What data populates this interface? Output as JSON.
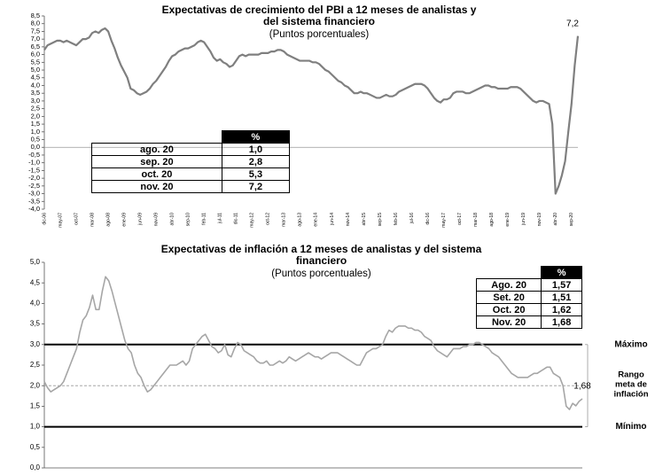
{
  "chart_data": [
    {
      "type": "line",
      "title": "Expectativas de crecimiento del PBI a 12 meses de analistas y del sistema financiero",
      "subtitle": "(Puntos porcentuales)",
      "color": "#7f7f7f",
      "zero_line": true,
      "categories": [
        "dic-06",
        null,
        null,
        null,
        null,
        "may-07",
        null,
        null,
        null,
        null,
        "oct-07",
        null,
        null,
        null,
        null,
        "mar-08",
        null,
        null,
        null,
        null,
        "ago-08",
        null,
        null,
        null,
        null,
        "ene-09",
        null,
        null,
        null,
        null,
        "jun-09",
        null,
        null,
        null,
        null,
        "nov-09",
        null,
        null,
        null,
        null,
        "abr-10",
        null,
        null,
        null,
        null,
        "sep-10",
        null,
        null,
        null,
        null,
        "feb-11",
        null,
        null,
        null,
        null,
        "jul-11",
        null,
        null,
        null,
        null,
        "dic-11",
        null,
        null,
        null,
        null,
        "may-12",
        null,
        null,
        null,
        null,
        "oct-12",
        null,
        null,
        null,
        null,
        "mar-13",
        null,
        null,
        null,
        null,
        "ago-13",
        null,
        null,
        null,
        null,
        "ene-14",
        null,
        null,
        null,
        null,
        "jun-14",
        null,
        null,
        null,
        null,
        "nov-14",
        null,
        null,
        null,
        null,
        "abr-15",
        null,
        null,
        null,
        null,
        "sep-15",
        null,
        null,
        null,
        null,
        "feb-16",
        null,
        null,
        null,
        null,
        "jul-16",
        null,
        null,
        null,
        null,
        "dic-16",
        null,
        null,
        null,
        null,
        "may-17",
        null,
        null,
        null,
        null,
        "oct-17",
        null,
        null,
        null,
        null,
        "mar-18",
        null,
        null,
        null,
        null,
        "ago-18",
        null,
        null,
        null,
        null,
        "ene-19",
        null,
        null,
        null,
        null,
        "jun-19",
        null,
        null,
        null,
        null,
        "nov-19",
        null,
        null,
        null,
        null,
        "abr-20",
        null,
        null,
        null,
        null,
        "sep-20",
        null,
        null
      ],
      "values": [
        6.3,
        6.6,
        6.7,
        6.8,
        6.9,
        6.9,
        6.8,
        6.9,
        6.8,
        6.7,
        6.6,
        6.8,
        7.0,
        7.0,
        7.1,
        7.4,
        7.5,
        7.4,
        7.6,
        7.7,
        7.5,
        6.9,
        6.4,
        5.8,
        5.3,
        4.9,
        4.5,
        3.8,
        3.7,
        3.5,
        3.4,
        3.5,
        3.6,
        3.8,
        4.1,
        4.3,
        4.6,
        4.9,
        5.2,
        5.6,
        5.9,
        6.0,
        6.2,
        6.3,
        6.4,
        6.4,
        6.5,
        6.6,
        6.8,
        6.9,
        6.8,
        6.5,
        6.2,
        5.8,
        5.6,
        5.7,
        5.5,
        5.4,
        5.2,
        5.3,
        5.6,
        5.9,
        6.0,
        5.9,
        6.0,
        6.0,
        6.0,
        6.0,
        6.1,
        6.1,
        6.1,
        6.2,
        6.2,
        6.3,
        6.3,
        6.2,
        6.0,
        5.9,
        5.8,
        5.7,
        5.6,
        5.6,
        5.6,
        5.6,
        5.5,
        5.5,
        5.4,
        5.2,
        5.0,
        4.9,
        4.7,
        4.5,
        4.3,
        4.2,
        4.0,
        3.9,
        3.7,
        3.5,
        3.5,
        3.6,
        3.5,
        3.5,
        3.4,
        3.3,
        3.2,
        3.2,
        3.3,
        3.4,
        3.3,
        3.3,
        3.4,
        3.6,
        3.7,
        3.8,
        3.9,
        4.0,
        4.1,
        4.1,
        4.1,
        4.0,
        3.8,
        3.5,
        3.2,
        3.0,
        2.9,
        3.1,
        3.1,
        3.2,
        3.5,
        3.6,
        3.6,
        3.6,
        3.5,
        3.5,
        3.6,
        3.7,
        3.8,
        3.9,
        4.0,
        4.0,
        3.9,
        3.9,
        3.8,
        3.8,
        3.8,
        3.8,
        3.9,
        3.9,
        3.9,
        3.8,
        3.6,
        3.4,
        3.2,
        3.0,
        2.9,
        3.0,
        3.0,
        2.9,
        2.8,
        1.5,
        -3.0,
        -2.5,
        -1.8,
        -0.9,
        1.0,
        2.8,
        5.3,
        7.2
      ],
      "end_label": "7,2",
      "ylim": [
        -4,
        8.5
      ],
      "yticks": [
        {
          "value": -4,
          "label": "-4,0"
        },
        {
          "value": -3.5,
          "label": "-3,5"
        },
        {
          "value": -3,
          "label": "-3,0"
        },
        {
          "value": -2.5,
          "label": "-2,5"
        },
        {
          "value": -2,
          "label": "-2,0"
        },
        {
          "value": -1.5,
          "label": "-1,5"
        },
        {
          "value": -1,
          "label": "-1,0"
        },
        {
          "value": -0.5,
          "label": "-0,5"
        },
        {
          "value": 0,
          "label": "0,0"
        },
        {
          "value": 0.5,
          "label": "0,5"
        },
        {
          "value": 1,
          "label": "1,0"
        },
        {
          "value": 1.5,
          "label": "1,5"
        },
        {
          "value": 2,
          "label": "2,0"
        },
        {
          "value": 2.5,
          "label": "2,5"
        },
        {
          "value": 3,
          "label": "3,0"
        },
        {
          "value": 3.5,
          "label": "3,5"
        },
        {
          "value": 4,
          "label": "4,0"
        },
        {
          "value": 4.5,
          "label": "4,5"
        },
        {
          "value": 5,
          "label": "5,0"
        },
        {
          "value": 5.5,
          "label": "5,5"
        },
        {
          "value": 6,
          "label": "6,0"
        },
        {
          "value": 6.5,
          "label": "6,5"
        },
        {
          "value": 7,
          "label": "7,0"
        },
        {
          "value": 7.5,
          "label": "7,5"
        },
        {
          "value": 8,
          "label": "8,0"
        },
        {
          "value": 8.5,
          "label": "8,5"
        }
      ],
      "table": {
        "header": "%",
        "rows": [
          [
            "ago. 20",
            "1,0"
          ],
          [
            "sep. 20",
            "2,8"
          ],
          [
            "oct. 20",
            "5,3"
          ],
          [
            "nov. 20",
            "7,2"
          ]
        ]
      }
    },
    {
      "type": "line",
      "title": "Expectativas de inflación a 12 meses de analistas y del sistema financiero",
      "subtitle": "(Puntos porcentuales)",
      "color": "#a6a6a6",
      "values": [
        2.1,
        1.95,
        1.85,
        1.9,
        1.95,
        2.0,
        2.1,
        2.3,
        2.5,
        2.7,
        2.9,
        3.3,
        3.6,
        3.7,
        3.9,
        4.2,
        3.85,
        3.85,
        4.3,
        4.65,
        4.55,
        4.3,
        4.0,
        3.7,
        3.4,
        3.1,
        2.9,
        2.8,
        2.5,
        2.3,
        2.2,
        2.0,
        1.85,
        1.9,
        2.0,
        2.1,
        2.2,
        2.3,
        2.4,
        2.5,
        2.5,
        2.5,
        2.55,
        2.6,
        2.5,
        2.6,
        2.9,
        3.0,
        3.1,
        3.2,
        3.25,
        3.1,
        2.95,
        2.9,
        2.8,
        2.85,
        3.0,
        2.75,
        2.7,
        2.9,
        3.05,
        3.0,
        2.85,
        2.8,
        2.75,
        2.7,
        2.6,
        2.55,
        2.55,
        2.6,
        2.5,
        2.5,
        2.55,
        2.6,
        2.55,
        2.6,
        2.7,
        2.65,
        2.6,
        2.65,
        2.7,
        2.75,
        2.8,
        2.75,
        2.7,
        2.7,
        2.65,
        2.7,
        2.75,
        2.8,
        2.8,
        2.8,
        2.75,
        2.7,
        2.65,
        2.6,
        2.55,
        2.5,
        2.5,
        2.65,
        2.8,
        2.85,
        2.9,
        2.9,
        2.95,
        3.0,
        3.2,
        3.35,
        3.3,
        3.4,
        3.45,
        3.45,
        3.45,
        3.4,
        3.4,
        3.35,
        3.35,
        3.3,
        3.2,
        3.15,
        3.1,
        2.95,
        2.85,
        2.8,
        2.75,
        2.7,
        2.8,
        2.9,
        2.9,
        2.9,
        2.95,
        2.95,
        3.0,
        3.0,
        3.05,
        3.05,
        3.0,
        2.95,
        2.9,
        2.8,
        2.75,
        2.7,
        2.6,
        2.5,
        2.4,
        2.3,
        2.25,
        2.2,
        2.2,
        2.2,
        2.2,
        2.25,
        2.3,
        2.3,
        2.35,
        2.4,
        2.45,
        2.45,
        2.3,
        2.25,
        2.2,
        2.0,
        1.5,
        1.42,
        1.57,
        1.51,
        1.62,
        1.68
      ],
      "end_label": "1,68",
      "ylim": [
        0,
        5
      ],
      "yticks": [
        {
          "value": 0,
          "label": "0,0"
        },
        {
          "value": 0.5,
          "label": "0,5"
        },
        {
          "value": 1,
          "label": "1,0"
        },
        {
          "value": 1.5,
          "label": "1,5"
        },
        {
          "value": 2,
          "label": "2,0"
        },
        {
          "value": 2.5,
          "label": "2,5"
        },
        {
          "value": 3,
          "label": "3,0"
        },
        {
          "value": 3.5,
          "label": "3,5"
        },
        {
          "value": 4,
          "label": "4,0"
        },
        {
          "value": 4.5,
          "label": "4,5"
        },
        {
          "value": 5,
          "label": "5,0"
        }
      ],
      "reference_lines": [
        {
          "value": 3,
          "label": "Máximo"
        },
        {
          "value": 2,
          "dashed": true
        },
        {
          "value": 1,
          "label": "Mínimo"
        }
      ],
      "range_label": [
        "Rango",
        "meta de",
        "inflación"
      ],
      "table": {
        "header": "%",
        "rows": [
          [
            "Ago. 20",
            "1,57"
          ],
          [
            "Set. 20",
            "1,51"
          ],
          [
            "Oct. 20",
            "1,62"
          ],
          [
            "Nov. 20",
            "1,68"
          ]
        ]
      }
    }
  ]
}
